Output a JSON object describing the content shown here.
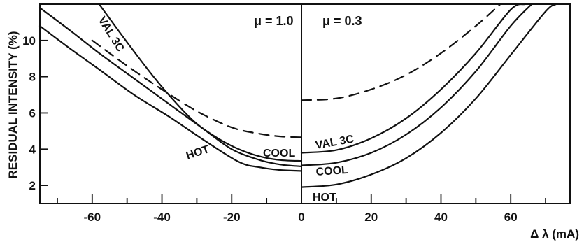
{
  "chart_data": {
    "type": "line",
    "xlabel": "Δ λ (mA)",
    "ylabel": "RESIDUAL INTENSITY (%)",
    "xlim": [
      -75,
      77
    ],
    "ylim": [
      1,
      12
    ],
    "x_ticks": [
      -60,
      -40,
      -20,
      0,
      20,
      40,
      60
    ],
    "x_tick_labels": [
      "-60",
      "-40",
      "-20",
      "0",
      "20",
      "40",
      "60"
    ],
    "y_ticks": [
      2,
      4,
      6,
      8,
      10
    ],
    "y_tick_labels": [
      "2",
      "4",
      "6",
      "8",
      "10"
    ],
    "grid": false,
    "panels": [
      {
        "label": "μ = 1.0",
        "side": "x ≤ 0",
        "series": [
          {
            "name": "VAL 3C",
            "style": "solid",
            "x": [
              -58,
              -50,
              -42,
              -35,
              -30,
              -24,
              -18,
              -12,
              -6,
              0
            ],
            "y": [
              12.0,
              9.9,
              7.9,
              6.35,
              5.4,
              4.6,
              4.0,
              3.6,
              3.4,
              3.35
            ]
          },
          {
            "name": "COOL",
            "style": "solid",
            "x": [
              -75,
              -66,
              -58,
              -48,
              -38,
              -28,
              -20,
              -12,
              -6,
              0
            ],
            "y": [
              11.8,
              10.5,
              9.3,
              7.9,
              6.5,
              5.1,
              4.0,
              3.4,
              3.15,
              3.05
            ]
          },
          {
            "name": "HOT",
            "style": "solid",
            "x": [
              -75,
              -66,
              -58,
              -48,
              -38,
              -28,
              -18,
              -12,
              -6,
              0
            ],
            "y": [
              10.8,
              9.5,
              8.4,
              7.0,
              5.8,
              4.5,
              3.3,
              3.0,
              2.85,
              2.8
            ]
          },
          {
            "name": "",
            "style": "dashed",
            "x": [
              -60,
              -50,
              -40,
              -30,
              -20,
              -12,
              -6,
              0
            ],
            "y": [
              10.0,
              8.6,
              7.3,
              6.1,
              5.2,
              4.85,
              4.7,
              4.65
            ]
          }
        ]
      },
      {
        "label": "μ = 0.3",
        "side": "x ≥ 0",
        "series": [
          {
            "name": "VAL 3C",
            "style": "solid",
            "x": [
              0,
              10,
              20,
              30,
              40,
              50,
              60,
              64
            ],
            "y": [
              3.8,
              3.95,
              4.6,
              5.7,
              7.3,
              9.3,
              11.7,
              12.0
            ]
          },
          {
            "name": "COOL",
            "style": "solid",
            "x": [
              0,
              10,
              20,
              30,
              40,
              50,
              60,
              66
            ],
            "y": [
              3.1,
              3.25,
              3.8,
              4.8,
              6.3,
              8.3,
              10.8,
              12.0
            ]
          },
          {
            "name": "HOT",
            "style": "solid",
            "x": [
              0,
              10,
              20,
              30,
              40,
              50,
              60,
              70,
              73
            ],
            "y": [
              1.9,
              2.05,
              2.6,
              3.5,
              4.9,
              6.8,
              9.2,
              11.6,
              12.0
            ]
          },
          {
            "name": "",
            "style": "dashed",
            "x": [
              0,
              10,
              20,
              30,
              40,
              50,
              57
            ],
            "y": [
              6.7,
              6.8,
              7.3,
              8.1,
              9.3,
              10.8,
              12.0
            ]
          }
        ]
      }
    ],
    "curve_labels": [
      {
        "text": "VAL 3C",
        "panel": "μ = 1.0"
      },
      {
        "text": "COOL",
        "panel": "μ = 1.0"
      },
      {
        "text": "HOT",
        "panel": "μ = 1.0"
      },
      {
        "text": "VAL 3C",
        "panel": "μ = 0.3"
      },
      {
        "text": "COOL",
        "panel": "μ = 0.3"
      },
      {
        "text": "HOT",
        "panel": "μ = 0.3"
      }
    ]
  }
}
